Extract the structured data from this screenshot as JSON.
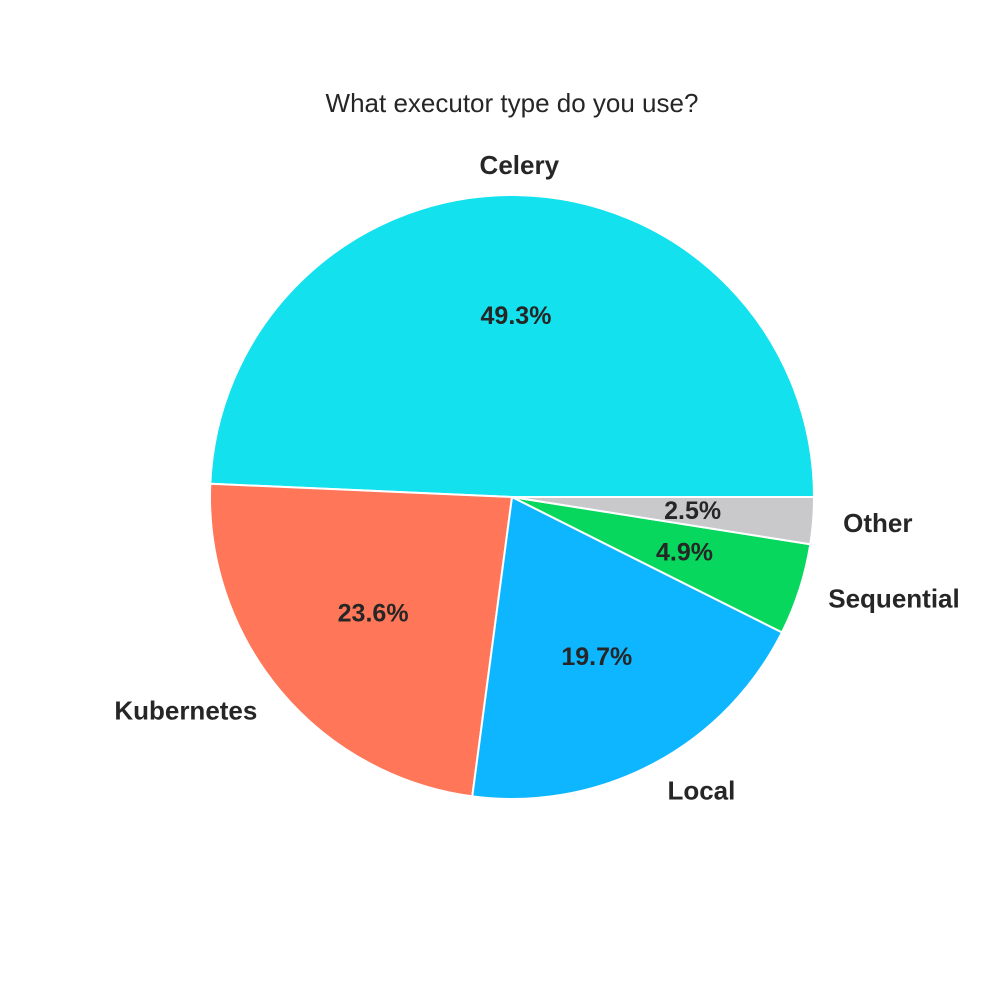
{
  "chart_data": {
    "type": "pie",
    "title": "What executor type do you use?",
    "categories": [
      "Celery",
      "Kubernetes",
      "Local",
      "Sequential",
      "Other"
    ],
    "values": [
      49.3,
      23.6,
      19.7,
      4.9,
      2.5
    ],
    "value_labels": [
      "49.3%",
      "23.6%",
      "19.7%",
      "4.9%",
      "2.5%"
    ],
    "colors": [
      "#13e1ee",
      "#ff7659",
      "#0db6ff",
      "#07d75c",
      "#c9c9cb"
    ],
    "start_angle_deg": 0,
    "direction": "counterclockwise",
    "legend": "none"
  }
}
